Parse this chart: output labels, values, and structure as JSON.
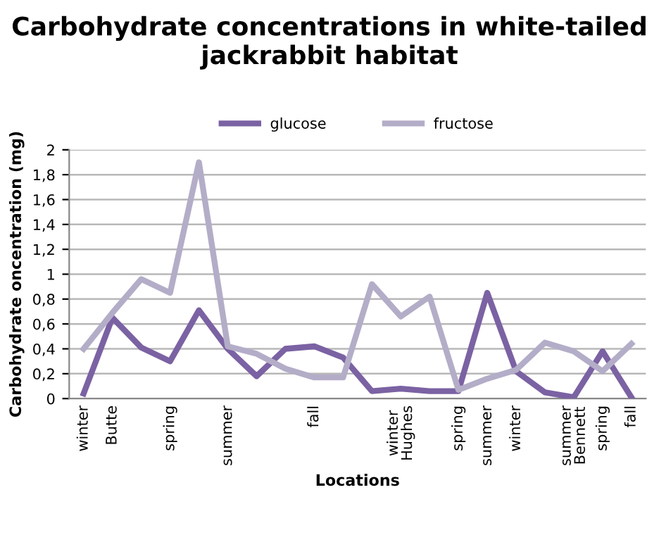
{
  "chart_data": {
    "type": "line",
    "title": "Carbohydrate concentrations in white-tailed jackrabbit habitat",
    "xlabel": "Locations",
    "ylabel": "Carbohydrate oncentration (mg)",
    "categories": [
      "winter",
      "Butte",
      null,
      "spring",
      null,
      "summer",
      null,
      null,
      "fall",
      null,
      null,
      "winter\nHughes",
      null,
      "spring",
      "summer",
      "winter",
      null,
      "summer\nBennett",
      "spring",
      "fall"
    ],
    "series": [
      {
        "name": "glucose",
        "color": "#7b62a3",
        "values": [
          0.04,
          0.65,
          0.41,
          0.3,
          0.71,
          0.4,
          0.18,
          0.4,
          0.42,
          0.33,
          0.06,
          0.08,
          0.06,
          0.06,
          0.85,
          0.22,
          0.05,
          0.01,
          0.38,
          0.01
        ]
      },
      {
        "name": "fructose",
        "color": "#b4adc8",
        "values": [
          0.4,
          0.69,
          0.96,
          0.85,
          1.9,
          0.42,
          0.36,
          0.24,
          0.17,
          0.17,
          0.92,
          0.66,
          0.82,
          0.07,
          0.16,
          0.23,
          0.45,
          0.38,
          0.22,
          0.44
        ]
      }
    ],
    "ylim": [
      0,
      2
    ],
    "yticks": [
      0,
      {
        "value": 0.2,
        "label": "0,2"
      },
      {
        "value": 0.4,
        "label": "0,4"
      },
      {
        "value": 0.6,
        "label": "0,6"
      },
      {
        "value": 0.8,
        "label": "0,8"
      },
      1,
      {
        "value": 1.2,
        "label": "1,2"
      },
      {
        "value": 1.4,
        "label": "1,4"
      },
      {
        "value": 1.6,
        "label": "1,6"
      },
      {
        "value": 1.8,
        "label": "1,8"
      },
      2
    ],
    "grid": "y",
    "legend": "top",
    "marker": "none",
    "line_style": "solid"
  }
}
